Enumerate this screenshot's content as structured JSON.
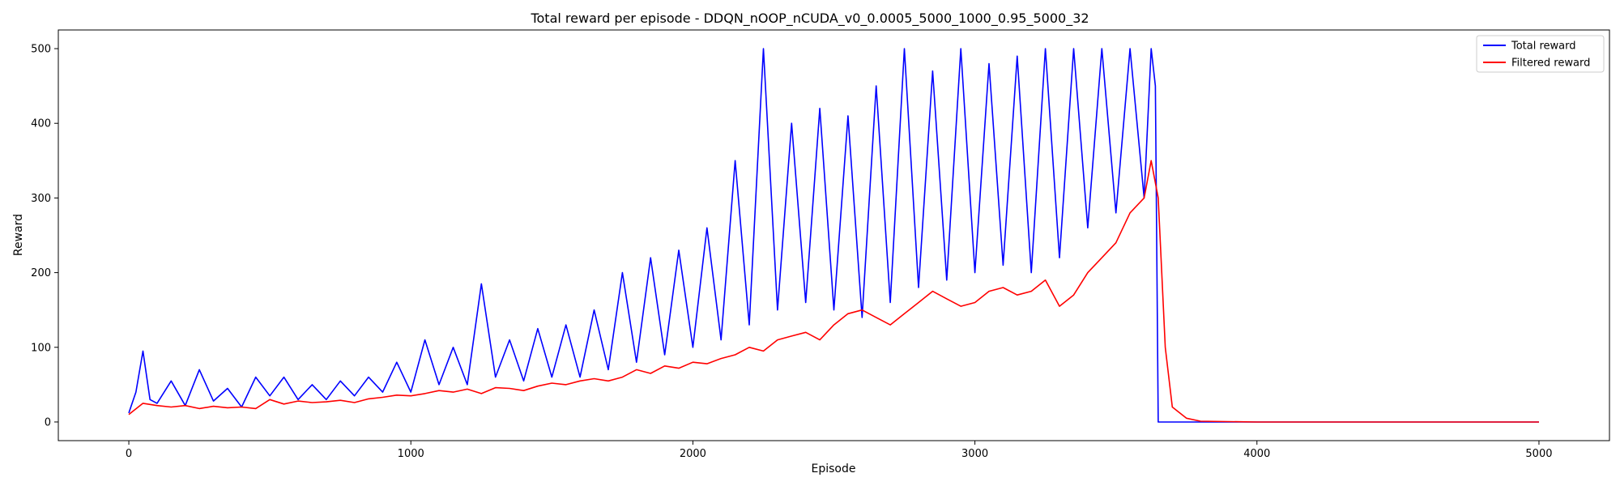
{
  "chart_data": {
    "type": "line",
    "title": "Total reward per episode - DDQN_nOOP_nCUDA_v0_0.0005_5000_1000_0.95_5000_32",
    "xlabel": "Episode",
    "ylabel": "Reward",
    "xlim": [
      -250,
      5250
    ],
    "ylim": [
      -25,
      525
    ],
    "xticks": [
      0,
      1000,
      2000,
      3000,
      4000,
      5000
    ],
    "yticks": [
      0,
      100,
      200,
      300,
      400,
      500
    ],
    "grid": false,
    "legend": "top-right",
    "series": [
      {
        "name": "Total reward",
        "color": "#0000ff",
        "x": [
          0,
          25,
          50,
          75,
          100,
          150,
          200,
          250,
          300,
          350,
          400,
          450,
          500,
          550,
          600,
          650,
          700,
          750,
          800,
          850,
          900,
          950,
          1000,
          1050,
          1100,
          1150,
          1200,
          1250,
          1300,
          1350,
          1400,
          1450,
          1500,
          1550,
          1600,
          1650,
          1700,
          1750,
          1800,
          1850,
          1900,
          1950,
          2000,
          2050,
          2100,
          2150,
          2200,
          2250,
          2300,
          2350,
          2400,
          2450,
          2500,
          2550,
          2600,
          2650,
          2700,
          2750,
          2800,
          2850,
          2900,
          2950,
          3000,
          3050,
          3100,
          3150,
          3200,
          3250,
          3300,
          3350,
          3400,
          3450,
          3500,
          3550,
          3600,
          3625,
          3640,
          3650,
          4000,
          5000
        ],
        "values": [
          12,
          40,
          95,
          30,
          25,
          55,
          22,
          70,
          28,
          45,
          20,
          60,
          35,
          60,
          30,
          50,
          30,
          55,
          35,
          60,
          40,
          80,
          40,
          110,
          50,
          100,
          50,
          185,
          60,
          110,
          55,
          125,
          60,
          130,
          60,
          150,
          70,
          200,
          80,
          220,
          90,
          230,
          100,
          260,
          110,
          350,
          130,
          500,
          150,
          400,
          160,
          420,
          150,
          410,
          140,
          450,
          160,
          500,
          180,
          470,
          190,
          500,
          200,
          480,
          210,
          490,
          200,
          500,
          220,
          500,
          260,
          500,
          280,
          500,
          300,
          500,
          450,
          0,
          0,
          0
        ]
      },
      {
        "name": "Filtered reward",
        "color": "#ff0000",
        "x": [
          0,
          50,
          100,
          150,
          200,
          250,
          300,
          350,
          400,
          450,
          500,
          550,
          600,
          650,
          700,
          750,
          800,
          850,
          900,
          950,
          1000,
          1050,
          1100,
          1150,
          1200,
          1250,
          1300,
          1350,
          1400,
          1450,
          1500,
          1550,
          1600,
          1650,
          1700,
          1750,
          1800,
          1850,
          1900,
          1950,
          2000,
          2050,
          2100,
          2150,
          2200,
          2250,
          2300,
          2350,
          2400,
          2450,
          2500,
          2550,
          2600,
          2650,
          2700,
          2750,
          2800,
          2850,
          2900,
          2950,
          3000,
          3050,
          3100,
          3150,
          3200,
          3250,
          3300,
          3350,
          3400,
          3450,
          3500,
          3550,
          3600,
          3625,
          3650,
          3675,
          3700,
          3750,
          3800,
          4000,
          5000
        ],
        "values": [
          10,
          25,
          22,
          20,
          22,
          18,
          21,
          19,
          20,
          18,
          30,
          24,
          28,
          26,
          27,
          29,
          26,
          31,
          33,
          36,
          35,
          38,
          42,
          40,
          44,
          38,
          46,
          45,
          42,
          48,
          52,
          50,
          55,
          58,
          55,
          60,
          70,
          65,
          75,
          72,
          80,
          78,
          85,
          90,
          100,
          95,
          110,
          115,
          120,
          110,
          130,
          145,
          150,
          140,
          130,
          145,
          160,
          175,
          165,
          155,
          160,
          175,
          180,
          170,
          175,
          190,
          155,
          170,
          200,
          220,
          240,
          280,
          300,
          350,
          300,
          100,
          20,
          5,
          1,
          0,
          0
        ]
      }
    ]
  }
}
